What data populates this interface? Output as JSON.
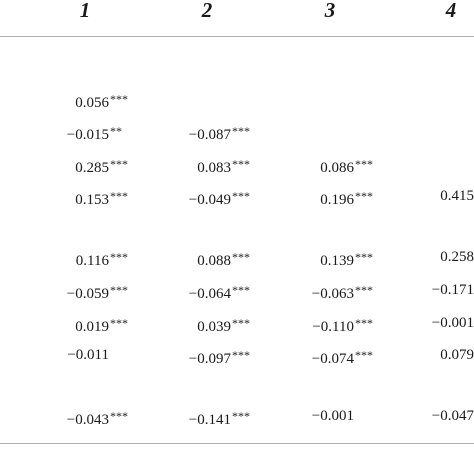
{
  "table": {
    "columns": [
      "1",
      "2",
      "3",
      "4"
    ],
    "rows": [
      [
        "0.056***",
        "",
        "",
        ""
      ],
      [
        "−0.015**",
        "−0.087***",
        "",
        ""
      ],
      [
        "0.285***",
        "0.083***",
        "0.086***",
        ""
      ],
      [
        "0.153***",
        "−0.049***",
        "0.196***",
        "0.415"
      ],
      [
        "0.116***",
        "0.088***",
        "0.139***",
        "0.258"
      ],
      [
        "−0.059***",
        "−0.064***",
        "−0.063***",
        "−0.171"
      ],
      [
        "0.019***",
        "0.039***",
        "−0.110***",
        "−0.001"
      ],
      [
        "−0.011",
        "−0.097***",
        "−0.074***",
        "0.079"
      ],
      [
        "−0.043***",
        "−0.141***",
        "−0.001",
        "−0.047"
      ]
    ]
  }
}
